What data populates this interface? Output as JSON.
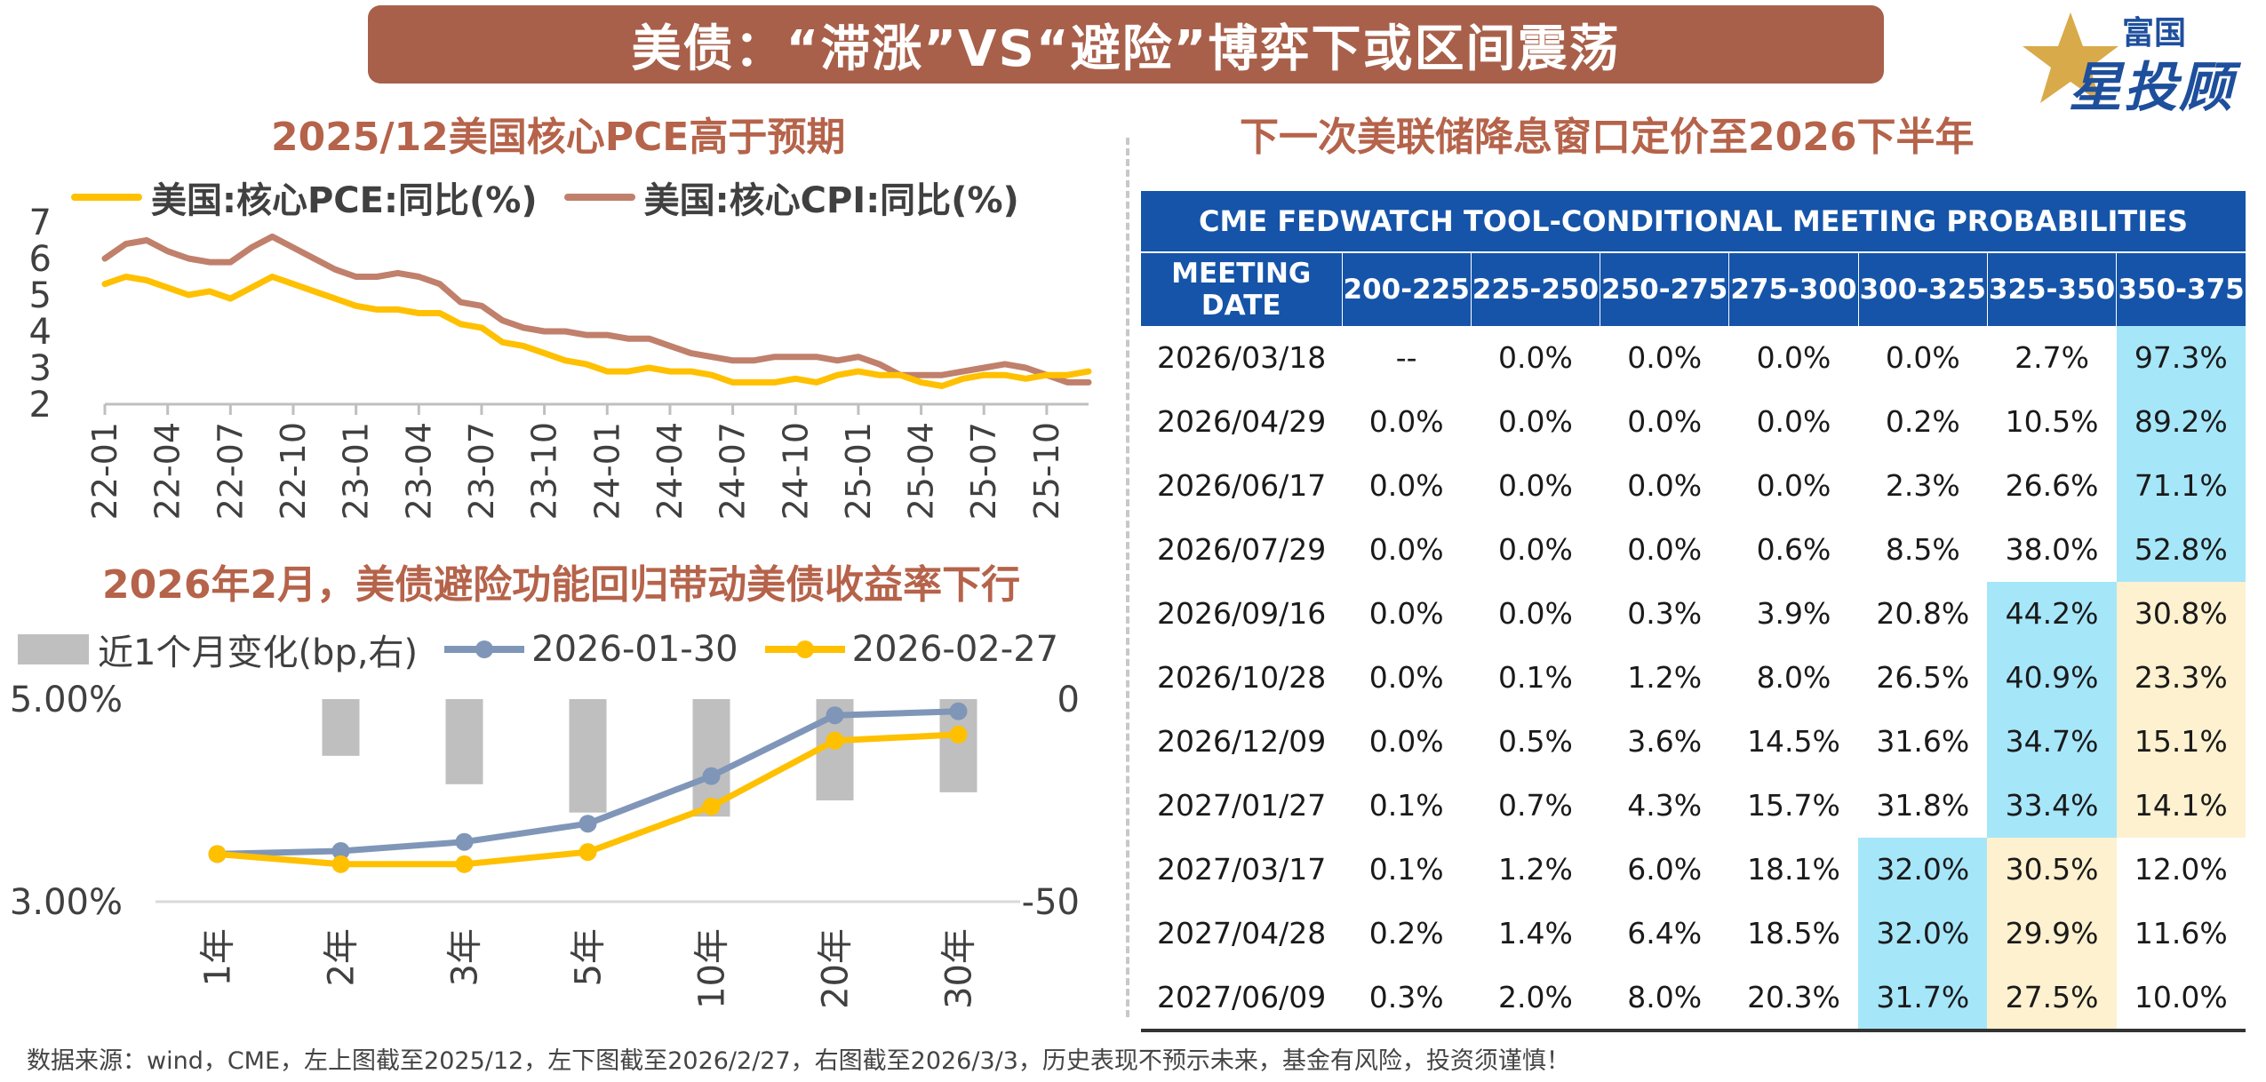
{
  "header": {
    "title": "美债：“滞涨”VS“避险”博弈下或区间震荡",
    "logo_top": "富国",
    "logo_main": "星投顾"
  },
  "chart_data": [
    {
      "type": "line",
      "title": "2025/12美国核心PCE高于预期",
      "ylim": [
        2,
        7
      ],
      "y_ticks": [
        "7",
        "6",
        "5",
        "4",
        "3",
        "2"
      ],
      "x_ticks": [
        "22-01",
        "22-04",
        "22-07",
        "22-10",
        "23-01",
        "23-04",
        "23-07",
        "23-10",
        "24-01",
        "24-04",
        "24-07",
        "24-10",
        "25-01",
        "25-04",
        "25-07",
        "25-10"
      ],
      "x_start": "22-01",
      "x_end": "25-12",
      "series": [
        {
          "name": "美国:核心PCE:同比(%)",
          "color": "#ffc000",
          "values": [
            5.3,
            5.5,
            5.4,
            5.2,
            5.0,
            5.1,
            4.9,
            5.2,
            5.5,
            5.3,
            5.1,
            4.9,
            4.7,
            4.6,
            4.6,
            4.5,
            4.5,
            4.2,
            4.1,
            3.7,
            3.6,
            3.4,
            3.2,
            3.1,
            2.9,
            2.9,
            3.0,
            2.9,
            2.9,
            2.8,
            2.6,
            2.6,
            2.6,
            2.7,
            2.6,
            2.8,
            2.9,
            2.8,
            2.8,
            2.6,
            2.5,
            2.7,
            2.8,
            2.8,
            2.7,
            2.8,
            2.8,
            2.9
          ]
        },
        {
          "name": "美国:核心CPI:同比(%)",
          "color": "#c0806b",
          "values": [
            6.0,
            6.4,
            6.5,
            6.2,
            6.0,
            5.9,
            5.9,
            6.3,
            6.6,
            6.3,
            6.0,
            5.7,
            5.5,
            5.5,
            5.6,
            5.5,
            5.3,
            4.8,
            4.7,
            4.3,
            4.1,
            4.0,
            4.0,
            3.9,
            3.9,
            3.8,
            3.8,
            3.6,
            3.4,
            3.3,
            3.2,
            3.2,
            3.3,
            3.3,
            3.3,
            3.2,
            3.3,
            3.1,
            2.8,
            2.8,
            2.8,
            2.9,
            3.0,
            3.1,
            3.0,
            2.8,
            2.6,
            2.6
          ]
        }
      ]
    },
    {
      "type": "line",
      "title": "2026年2月，美债避险功能回归带动美债收益率下行",
      "categories": [
        "1年",
        "2年",
        "3年",
        "5年",
        "10年",
        "20年",
        "30年"
      ],
      "y_left_ticks": [
        "5.00%",
        "3.00%"
      ],
      "ylim_left": [
        3.0,
        5.0
      ],
      "y_right_ticks": [
        "0",
        "-50"
      ],
      "ylim_right": [
        -50,
        0
      ],
      "series": [
        {
          "name": "近1个月变化(bp,右)",
          "type": "bar",
          "color": "#bfbfbf",
          "values": [
            0,
            -14,
            -21,
            -28,
            -29,
            -25,
            -23
          ]
        },
        {
          "name": "2026-01-30",
          "color": "#7f96b8",
          "values": [
            3.47,
            3.5,
            3.59,
            3.77,
            4.24,
            4.84,
            4.88
          ]
        },
        {
          "name": "2026-02-27",
          "color": "#ffc000",
          "values": [
            3.47,
            3.37,
            3.37,
            3.49,
            3.94,
            4.59,
            4.65
          ]
        }
      ]
    },
    {
      "type": "table",
      "title": "下一次美联储降息窗口定价至2026下半年",
      "table_title": "CME FEDWATCH TOOL-CONDITIONAL MEETING PROBABILITIES",
      "columns": [
        "MEETING DATE",
        "200-225",
        "225-250",
        "250-275",
        "275-300",
        "300-325",
        "325-350",
        "350-375"
      ],
      "rows": [
        {
          "date": "2026/03/18",
          "values": [
            "--",
            "0.0%",
            "0.0%",
            "0.0%",
            "0.0%",
            "2.7%",
            "97.3%"
          ],
          "hl": [
            "",
            "",
            "",
            "",
            "",
            "",
            "blue"
          ]
        },
        {
          "date": "2026/04/29",
          "values": [
            "0.0%",
            "0.0%",
            "0.0%",
            "0.0%",
            "0.2%",
            "10.5%",
            "89.2%"
          ],
          "hl": [
            "",
            "",
            "",
            "",
            "",
            "",
            "blue"
          ]
        },
        {
          "date": "2026/06/17",
          "values": [
            "0.0%",
            "0.0%",
            "0.0%",
            "0.0%",
            "2.3%",
            "26.6%",
            "71.1%"
          ],
          "hl": [
            "",
            "",
            "",
            "",
            "",
            "",
            "blue"
          ]
        },
        {
          "date": "2026/07/29",
          "values": [
            "0.0%",
            "0.0%",
            "0.0%",
            "0.6%",
            "8.5%",
            "38.0%",
            "52.8%"
          ],
          "hl": [
            "",
            "",
            "",
            "",
            "",
            "",
            "blue"
          ]
        },
        {
          "date": "2026/09/16",
          "values": [
            "0.0%",
            "0.0%",
            "0.3%",
            "3.9%",
            "20.8%",
            "44.2%",
            "30.8%"
          ],
          "hl": [
            "",
            "",
            "",
            "",
            "",
            "blue",
            "cream"
          ]
        },
        {
          "date": "2026/10/28",
          "values": [
            "0.0%",
            "0.1%",
            "1.2%",
            "8.0%",
            "26.5%",
            "40.9%",
            "23.3%"
          ],
          "hl": [
            "",
            "",
            "",
            "",
            "",
            "blue",
            "cream"
          ]
        },
        {
          "date": "2026/12/09",
          "values": [
            "0.0%",
            "0.5%",
            "3.6%",
            "14.5%",
            "31.6%",
            "34.7%",
            "15.1%"
          ],
          "hl": [
            "",
            "",
            "",
            "",
            "",
            "blue",
            "cream"
          ]
        },
        {
          "date": "2027/01/27",
          "values": [
            "0.1%",
            "0.7%",
            "4.3%",
            "15.7%",
            "31.8%",
            "33.4%",
            "14.1%"
          ],
          "hl": [
            "",
            "",
            "",
            "",
            "",
            "blue",
            "cream"
          ]
        },
        {
          "date": "2027/03/17",
          "values": [
            "0.1%",
            "1.2%",
            "6.0%",
            "18.1%",
            "32.0%",
            "30.5%",
            "12.0%"
          ],
          "hl": [
            "",
            "",
            "",
            "",
            "blue",
            "cream",
            ""
          ]
        },
        {
          "date": "2027/04/28",
          "values": [
            "0.2%",
            "1.4%",
            "6.4%",
            "18.5%",
            "32.0%",
            "29.9%",
            "11.6%"
          ],
          "hl": [
            "",
            "",
            "",
            "",
            "blue",
            "cream",
            ""
          ]
        },
        {
          "date": "2027/06/09",
          "values": [
            "0.3%",
            "2.0%",
            "8.0%",
            "20.3%",
            "31.7%",
            "27.5%",
            "10.0%"
          ],
          "hl": [
            "",
            "",
            "",
            "",
            "blue",
            "cream",
            ""
          ]
        }
      ]
    }
  ],
  "footer": {
    "source": "数据来源：wind，CME，左上图截至2025/12，左下图截至2026/2/27，右图截至2026/3/3，历史表现不预示未来，基金有风险，投资须谨慎！"
  },
  "colors": {
    "title_bg": "#a8604a",
    "subtitle": "#b5634a",
    "table_header": "#1554a8",
    "blue_cell": "#a6e6f9",
    "cream_cell": "#fdf1cf"
  }
}
